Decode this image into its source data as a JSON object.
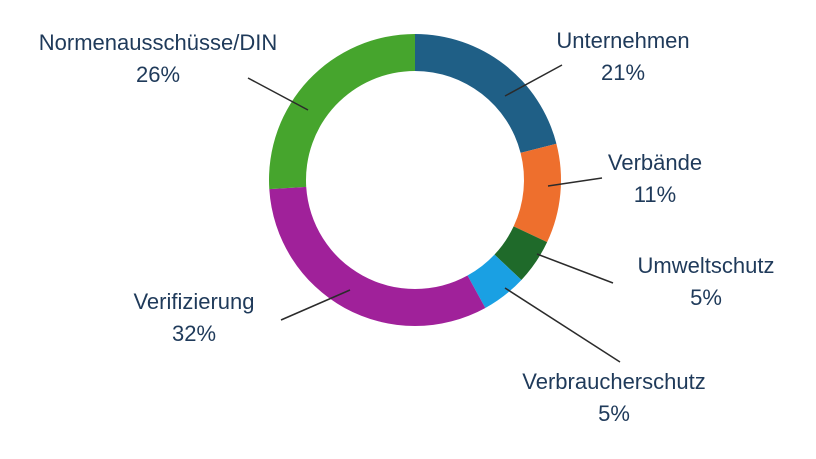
{
  "chart_data": {
    "type": "pie",
    "variant": "donut",
    "title": "",
    "slices": [
      {
        "name": "Unternehmen",
        "value": 21,
        "label": "21%",
        "color": "#1f5f86"
      },
      {
        "name": "Verbände",
        "value": 11,
        "label": "11%",
        "color": "#ee6f2d"
      },
      {
        "name": "Umweltschutz",
        "value": 5,
        "label": "5%",
        "color": "#1f6a2a"
      },
      {
        "name": "Verbraucherschutz",
        "value": 5,
        "label": "5%",
        "color": "#1aa0e3"
      },
      {
        "name": "Verifizierung",
        "value": 32,
        "label": "32%",
        "color": "#a0219a"
      },
      {
        "name": "Normenausschüsse/DIN",
        "value": 26,
        "label": "26%",
        "color": "#46a52d"
      }
    ]
  }
}
